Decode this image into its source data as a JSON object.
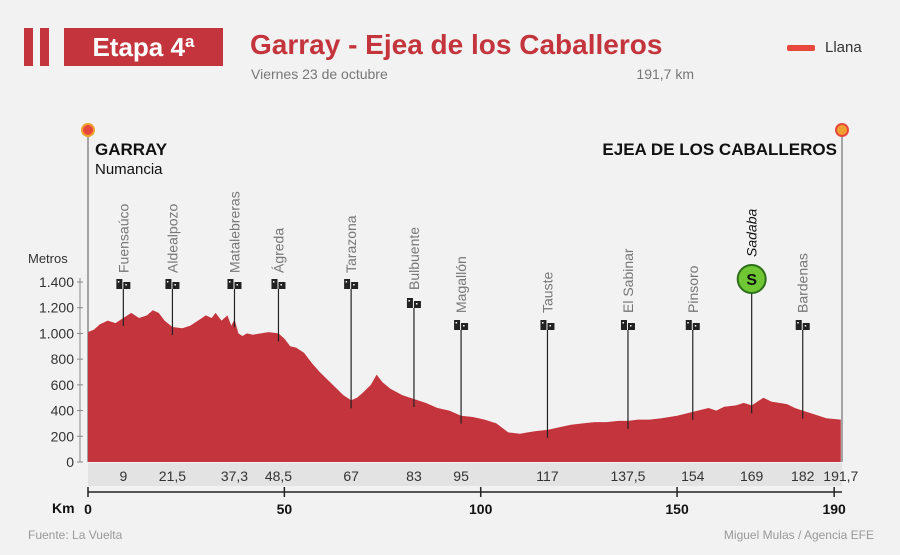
{
  "header": {
    "stage_label": "Etapa 4ª",
    "title": "Garray - Ejea de los Caballeros",
    "date": "Viernes 23 de octubre",
    "distance": "191,7 km"
  },
  "legend": {
    "label": "Llana",
    "color": "#e8473c"
  },
  "start": {
    "city": "GARRAY",
    "subtitle": "Numancia"
  },
  "finish": {
    "city": "EJEA DE LOS CABALLEROS"
  },
  "footer": {
    "source": "Fuente: La Vuelta",
    "credit": "Miguel Mulas / Agencia EFE"
  },
  "colors": {
    "profile": "#c4343d",
    "sprint": "#6fc733",
    "accent": "#c4343d"
  },
  "chart_data": {
    "type": "area",
    "title": "Garray - Ejea de los Caballeros",
    "xlabel": "Km",
    "ylabel": "Metros",
    "xlim": [
      0,
      192
    ],
    "ylim": [
      0,
      1400
    ],
    "x_ticks": [
      0,
      50,
      100,
      150,
      190
    ],
    "y_ticks": [
      0,
      200,
      400,
      600,
      800,
      1000,
      1200,
      1400
    ],
    "y_tick_labels": [
      "0",
      "200",
      "400",
      "600",
      "800",
      "1.000",
      "1.200",
      "1.400"
    ],
    "grid": false,
    "profile": {
      "km": [
        0,
        1.5,
        3,
        5,
        7,
        9,
        11,
        13,
        15,
        16.5,
        18,
        19.5,
        21.5,
        24,
        26,
        28,
        30,
        31.5,
        32.5,
        34,
        35.5,
        36.5,
        37.3,
        38.3,
        39.3,
        40.5,
        42,
        44,
        46,
        48.5,
        50,
        51.5,
        53,
        55,
        57,
        59,
        61,
        63,
        65,
        67,
        68.5,
        70,
        72,
        73.5,
        75,
        77,
        80,
        83,
        86,
        89,
        92,
        95,
        98,
        101,
        104,
        107,
        110,
        112,
        114,
        117,
        120,
        123,
        126,
        129,
        132,
        135,
        137.5,
        140,
        143,
        146,
        150,
        154,
        158,
        160,
        162,
        165,
        167,
        169,
        171,
        172,
        174,
        176,
        178,
        180,
        182,
        185,
        188,
        191.7
      ],
      "elevation": [
        1010,
        1030,
        1070,
        1100,
        1080,
        1120,
        1160,
        1120,
        1140,
        1180,
        1160,
        1100,
        1050,
        1040,
        1060,
        1100,
        1140,
        1120,
        1160,
        1100,
        1140,
        1060,
        1110,
        1000,
        980,
        1000,
        990,
        1000,
        1010,
        1000,
        960,
        900,
        890,
        850,
        770,
        700,
        640,
        580,
        520,
        480,
        500,
        540,
        600,
        680,
        620,
        570,
        520,
        490,
        460,
        420,
        400,
        360,
        350,
        330,
        300,
        230,
        220,
        230,
        240,
        250,
        270,
        290,
        300,
        310,
        310,
        320,
        320,
        330,
        330,
        340,
        360,
        390,
        420,
        400,
        430,
        440,
        460,
        440,
        480,
        500,
        470,
        460,
        450,
        420,
        400,
        370,
        340,
        330
      ]
    },
    "points": [
      {
        "name": "Fuensaúco",
        "km_label": "9",
        "km": 9,
        "icon": "town-icon",
        "italic": false
      },
      {
        "name": "Aldealpozo",
        "km_label": "21,5",
        "km": 21.5,
        "icon": "town-icon",
        "italic": false
      },
      {
        "name": "Matalebreras",
        "km_label": "37,3",
        "km": 37.3,
        "icon": "town-icon",
        "italic": false
      },
      {
        "name": "Ágreda",
        "km_label": "48,5",
        "km": 48.5,
        "icon": "town-icon",
        "italic": false
      },
      {
        "name": "Tarazona",
        "km_label": "67",
        "km": 67,
        "icon": "town-icon",
        "italic": false
      },
      {
        "name": "Bulbuente",
        "km_label": "83",
        "km": 83,
        "icon": "town-icon",
        "italic": false
      },
      {
        "name": "Magallón",
        "km_label": "95",
        "km": 95,
        "icon": "town-icon",
        "italic": false
      },
      {
        "name": "Tauste",
        "km_label": "117",
        "km": 117,
        "icon": "town-icon",
        "italic": false
      },
      {
        "name": "El Sabinar",
        "km_label": "137,5",
        "km": 137.5,
        "icon": "town-icon",
        "italic": false
      },
      {
        "name": "Pinsoro",
        "km_label": "154",
        "km": 154,
        "icon": "town-icon",
        "italic": false
      },
      {
        "name": "Sadaba",
        "km_label": "169",
        "km": 169,
        "icon": "sprint-icon",
        "sprint_letter": "S",
        "italic": true
      },
      {
        "name": "Bardenas",
        "km_label": "182",
        "km": 182,
        "icon": "town-icon",
        "italic": false
      },
      {
        "name": "",
        "km_label": "191,7",
        "km": 191.7,
        "icon": "",
        "italic": false
      }
    ]
  }
}
